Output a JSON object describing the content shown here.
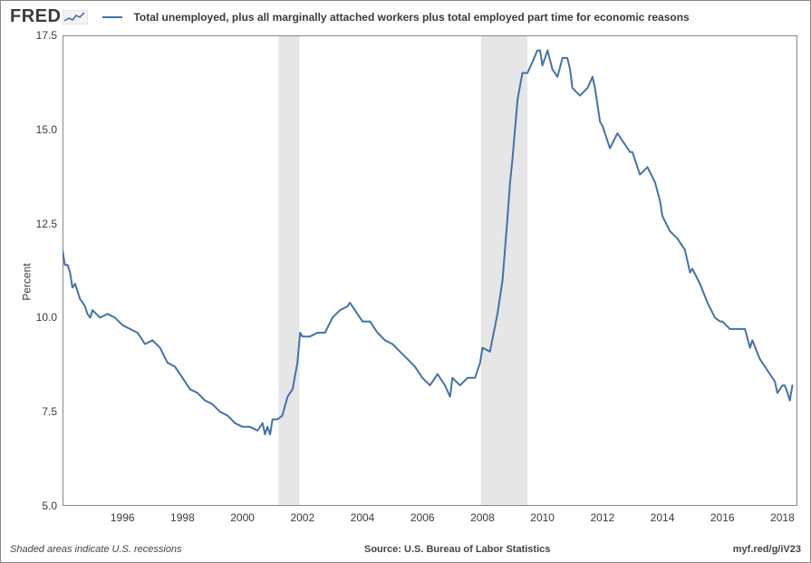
{
  "logo_text": "FRED",
  "legend_label": "Total unemployed, plus all marginally attached workers plus total employed part time for economic reasons",
  "ylabel": "Percent",
  "footer": {
    "note": "Shaded areas indicate U.S. recessions",
    "source": "Source: U.S. Bureau of Labor Statistics",
    "link": "myf.red/g/iV23"
  },
  "chart": {
    "type": "line",
    "background_color": "#ffffff",
    "border_color": "#888888",
    "tick_color": "#cccccc",
    "line_color": "#4572a7",
    "line_width": 2,
    "recession_fill": "#e6e6e6",
    "label_fontsize": 12,
    "x": {
      "min": 1994.0,
      "max": 2018.5,
      "ticks": [
        1996,
        1998,
        2000,
        2002,
        2004,
        2006,
        2008,
        2010,
        2012,
        2014,
        2016,
        2018
      ]
    },
    "y": {
      "min": 5.0,
      "max": 17.5,
      "ticks": [
        5.0,
        7.5,
        10.0,
        12.5,
        15.0,
        17.5
      ]
    },
    "recessions": [
      {
        "start": 2001.2,
        "end": 2001.9
      },
      {
        "start": 2007.95,
        "end": 2009.5
      }
    ],
    "series": [
      {
        "x": 1994.0,
        "y": 11.8
      },
      {
        "x": 1994.08,
        "y": 11.4
      },
      {
        "x": 1994.17,
        "y": 11.4
      },
      {
        "x": 1994.25,
        "y": 11.2
      },
      {
        "x": 1994.33,
        "y": 10.8
      },
      {
        "x": 1994.42,
        "y": 10.9
      },
      {
        "x": 1994.5,
        "y": 10.7
      },
      {
        "x": 1994.58,
        "y": 10.5
      },
      {
        "x": 1994.67,
        "y": 10.4
      },
      {
        "x": 1994.75,
        "y": 10.3
      },
      {
        "x": 1994.83,
        "y": 10.1
      },
      {
        "x": 1994.92,
        "y": 10.0
      },
      {
        "x": 1995.0,
        "y": 10.2
      },
      {
        "x": 1995.25,
        "y": 10.0
      },
      {
        "x": 1995.5,
        "y": 10.1
      },
      {
        "x": 1995.75,
        "y": 10.0
      },
      {
        "x": 1996.0,
        "y": 9.8
      },
      {
        "x": 1996.25,
        "y": 9.7
      },
      {
        "x": 1996.5,
        "y": 9.6
      },
      {
        "x": 1996.75,
        "y": 9.3
      },
      {
        "x": 1997.0,
        "y": 9.4
      },
      {
        "x": 1997.25,
        "y": 9.2
      },
      {
        "x": 1997.5,
        "y": 8.8
      },
      {
        "x": 1997.75,
        "y": 8.7
      },
      {
        "x": 1998.0,
        "y": 8.4
      },
      {
        "x": 1998.25,
        "y": 8.1
      },
      {
        "x": 1998.5,
        "y": 8.0
      },
      {
        "x": 1998.75,
        "y": 7.8
      },
      {
        "x": 1999.0,
        "y": 7.7
      },
      {
        "x": 1999.25,
        "y": 7.5
      },
      {
        "x": 1999.5,
        "y": 7.4
      },
      {
        "x": 1999.75,
        "y": 7.2
      },
      {
        "x": 2000.0,
        "y": 7.1
      },
      {
        "x": 2000.25,
        "y": 7.1
      },
      {
        "x": 2000.5,
        "y": 7.0
      },
      {
        "x": 2000.67,
        "y": 7.2
      },
      {
        "x": 2000.75,
        "y": 6.9
      },
      {
        "x": 2000.83,
        "y": 7.1
      },
      {
        "x": 2000.92,
        "y": 6.9
      },
      {
        "x": 2001.0,
        "y": 7.3
      },
      {
        "x": 2001.17,
        "y": 7.3
      },
      {
        "x": 2001.33,
        "y": 7.4
      },
      {
        "x": 2001.5,
        "y": 7.9
      },
      {
        "x": 2001.67,
        "y": 8.1
      },
      {
        "x": 2001.83,
        "y": 8.8
      },
      {
        "x": 2001.92,
        "y": 9.6
      },
      {
        "x": 2002.0,
        "y": 9.5
      },
      {
        "x": 2002.25,
        "y": 9.5
      },
      {
        "x": 2002.5,
        "y": 9.6
      },
      {
        "x": 2002.75,
        "y": 9.6
      },
      {
        "x": 2003.0,
        "y": 10.0
      },
      {
        "x": 2003.25,
        "y": 10.2
      },
      {
        "x": 2003.5,
        "y": 10.3
      },
      {
        "x": 2003.58,
        "y": 10.4
      },
      {
        "x": 2003.75,
        "y": 10.2
      },
      {
        "x": 2004.0,
        "y": 9.9
      },
      {
        "x": 2004.25,
        "y": 9.9
      },
      {
        "x": 2004.5,
        "y": 9.6
      },
      {
        "x": 2004.75,
        "y": 9.4
      },
      {
        "x": 2005.0,
        "y": 9.3
      },
      {
        "x": 2005.25,
        "y": 9.1
      },
      {
        "x": 2005.5,
        "y": 8.9
      },
      {
        "x": 2005.75,
        "y": 8.7
      },
      {
        "x": 2006.0,
        "y": 8.4
      },
      {
        "x": 2006.25,
        "y": 8.2
      },
      {
        "x": 2006.5,
        "y": 8.5
      },
      {
        "x": 2006.75,
        "y": 8.2
      },
      {
        "x": 2006.92,
        "y": 7.9
      },
      {
        "x": 2007.0,
        "y": 8.4
      },
      {
        "x": 2007.25,
        "y": 8.2
      },
      {
        "x": 2007.5,
        "y": 8.4
      },
      {
        "x": 2007.75,
        "y": 8.4
      },
      {
        "x": 2007.92,
        "y": 8.8
      },
      {
        "x": 2008.0,
        "y": 9.2
      },
      {
        "x": 2008.25,
        "y": 9.1
      },
      {
        "x": 2008.5,
        "y": 10.1
      },
      {
        "x": 2008.67,
        "y": 11.0
      },
      {
        "x": 2008.83,
        "y": 12.6
      },
      {
        "x": 2008.92,
        "y": 13.6
      },
      {
        "x": 2009.0,
        "y": 14.2
      },
      {
        "x": 2009.17,
        "y": 15.8
      },
      {
        "x": 2009.33,
        "y": 16.5
      },
      {
        "x": 2009.5,
        "y": 16.5
      },
      {
        "x": 2009.67,
        "y": 16.8
      },
      {
        "x": 2009.83,
        "y": 17.1
      },
      {
        "x": 2009.92,
        "y": 17.1
      },
      {
        "x": 2010.0,
        "y": 16.7
      },
      {
        "x": 2010.17,
        "y": 17.1
      },
      {
        "x": 2010.33,
        "y": 16.6
      },
      {
        "x": 2010.5,
        "y": 16.4
      },
      {
        "x": 2010.67,
        "y": 16.9
      },
      {
        "x": 2010.83,
        "y": 16.9
      },
      {
        "x": 2010.92,
        "y": 16.6
      },
      {
        "x": 2011.0,
        "y": 16.1
      },
      {
        "x": 2011.25,
        "y": 15.9
      },
      {
        "x": 2011.5,
        "y": 16.1
      },
      {
        "x": 2011.67,
        "y": 16.4
      },
      {
        "x": 2011.75,
        "y": 16.1
      },
      {
        "x": 2011.92,
        "y": 15.2
      },
      {
        "x": 2012.0,
        "y": 15.1
      },
      {
        "x": 2012.25,
        "y": 14.5
      },
      {
        "x": 2012.5,
        "y": 14.9
      },
      {
        "x": 2012.75,
        "y": 14.6
      },
      {
        "x": 2012.92,
        "y": 14.4
      },
      {
        "x": 2013.0,
        "y": 14.4
      },
      {
        "x": 2013.25,
        "y": 13.8
      },
      {
        "x": 2013.5,
        "y": 14.0
      },
      {
        "x": 2013.75,
        "y": 13.6
      },
      {
        "x": 2013.92,
        "y": 13.1
      },
      {
        "x": 2014.0,
        "y": 12.7
      },
      {
        "x": 2014.25,
        "y": 12.3
      },
      {
        "x": 2014.5,
        "y": 12.1
      },
      {
        "x": 2014.75,
        "y": 11.8
      },
      {
        "x": 2014.92,
        "y": 11.2
      },
      {
        "x": 2015.0,
        "y": 11.3
      },
      {
        "x": 2015.25,
        "y": 10.9
      },
      {
        "x": 2015.5,
        "y": 10.4
      },
      {
        "x": 2015.75,
        "y": 10.0
      },
      {
        "x": 2015.92,
        "y": 9.9
      },
      {
        "x": 2016.0,
        "y": 9.9
      },
      {
        "x": 2016.25,
        "y": 9.7
      },
      {
        "x": 2016.5,
        "y": 9.7
      },
      {
        "x": 2016.75,
        "y": 9.7
      },
      {
        "x": 2016.92,
        "y": 9.2
      },
      {
        "x": 2017.0,
        "y": 9.4
      },
      {
        "x": 2017.25,
        "y": 8.9
      },
      {
        "x": 2017.5,
        "y": 8.6
      },
      {
        "x": 2017.75,
        "y": 8.3
      },
      {
        "x": 2017.83,
        "y": 8.0
      },
      {
        "x": 2017.92,
        "y": 8.1
      },
      {
        "x": 2018.0,
        "y": 8.2
      },
      {
        "x": 2018.08,
        "y": 8.2
      },
      {
        "x": 2018.17,
        "y": 8.0
      },
      {
        "x": 2018.25,
        "y": 7.8
      },
      {
        "x": 2018.33,
        "y": 8.2
      }
    ]
  }
}
